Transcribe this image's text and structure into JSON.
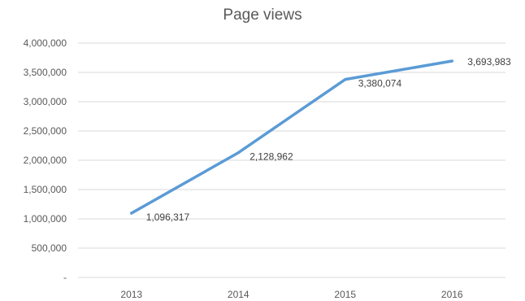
{
  "chart_data": {
    "type": "line",
    "title": "Page views",
    "categories": [
      "2013",
      "2014",
      "2015",
      "2016"
    ],
    "series": [
      {
        "values": [
          1096317,
          2128962,
          3380074,
          3693983
        ],
        "data_labels": [
          "1,096,317",
          "2,128,962",
          "3,380,074",
          "3,693,983"
        ]
      }
    ],
    "y_ticks": [
      0,
      500000,
      1000000,
      1500000,
      2000000,
      2500000,
      3000000,
      3500000,
      4000000
    ],
    "y_tick_labels": [
      "-",
      "500,000",
      "1,000,000",
      "1,500,000",
      "2,000,000",
      "2,500,000",
      "3,000,000",
      "3,500,000",
      "4,000,000"
    ],
    "ylim": [
      0,
      4000000
    ],
    "grid": true,
    "legend": "none",
    "colors": {
      "line": "#5b9bd5",
      "grid": "#d9d9d9",
      "text": "#595959"
    }
  }
}
